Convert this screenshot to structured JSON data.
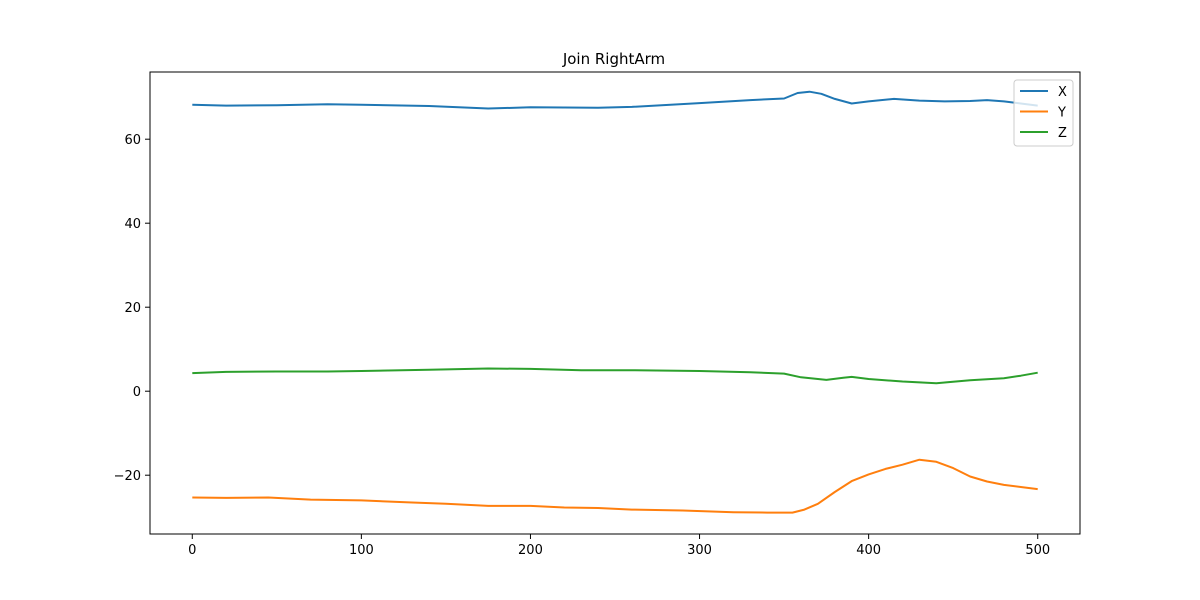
{
  "chart_data": {
    "type": "line",
    "title": "Join RightArm",
    "xlabel": "",
    "ylabel": "",
    "xlim": [
      -25,
      525
    ],
    "ylim": [
      -34,
      76
    ],
    "xticks": [
      0,
      100,
      200,
      300,
      400,
      500
    ],
    "yticks": [
      -20,
      0,
      20,
      40,
      60
    ],
    "ytick_labels": [
      "−20",
      "0",
      "20",
      "40",
      "60"
    ],
    "grid": false,
    "legend_position": "top-right",
    "series": [
      {
        "name": "X",
        "color": "#1f77b4",
        "x": [
          0,
          20,
          50,
          80,
          100,
          140,
          175,
          200,
          240,
          260,
          300,
          330,
          350,
          358,
          365,
          372,
          380,
          390,
          400,
          415,
          430,
          445,
          460,
          470,
          480,
          490,
          500
        ],
        "y": [
          68.2,
          68.0,
          68.1,
          68.3,
          68.2,
          67.9,
          67.3,
          67.6,
          67.5,
          67.7,
          68.6,
          69.3,
          69.7,
          71.0,
          71.3,
          70.8,
          69.6,
          68.5,
          69.0,
          69.6,
          69.2,
          69.0,
          69.1,
          69.3,
          69.0,
          68.5,
          68.0
        ]
      },
      {
        "name": "Y",
        "color": "#ff7f0e",
        "x": [
          0,
          20,
          45,
          70,
          100,
          130,
          150,
          175,
          200,
          220,
          240,
          260,
          290,
          320,
          340,
          355,
          362,
          370,
          380,
          390,
          400,
          410,
          420,
          430,
          440,
          450,
          460,
          470,
          480,
          490,
          500
        ],
        "y": [
          -25.3,
          -25.4,
          -25.3,
          -25.8,
          -26.0,
          -26.5,
          -26.8,
          -27.3,
          -27.3,
          -27.7,
          -27.8,
          -28.2,
          -28.4,
          -28.8,
          -28.9,
          -28.9,
          -28.2,
          -26.8,
          -24.0,
          -21.4,
          -19.8,
          -18.5,
          -17.5,
          -16.3,
          -16.8,
          -18.3,
          -20.3,
          -21.5,
          -22.3,
          -22.8,
          -23.3
        ]
      },
      {
        "name": "Z",
        "color": "#2ca02c",
        "x": [
          0,
          20,
          50,
          80,
          100,
          140,
          175,
          200,
          230,
          260,
          300,
          330,
          350,
          360,
          375,
          385,
          390,
          400,
          420,
          440,
          460,
          480,
          490,
          500
        ],
        "y": [
          4.3,
          4.6,
          4.7,
          4.7,
          4.8,
          5.1,
          5.4,
          5.3,
          5.0,
          5.0,
          4.8,
          4.5,
          4.2,
          3.3,
          2.7,
          3.2,
          3.4,
          2.9,
          2.3,
          1.9,
          2.6,
          3.1,
          3.7,
          4.4
        ]
      }
    ]
  }
}
